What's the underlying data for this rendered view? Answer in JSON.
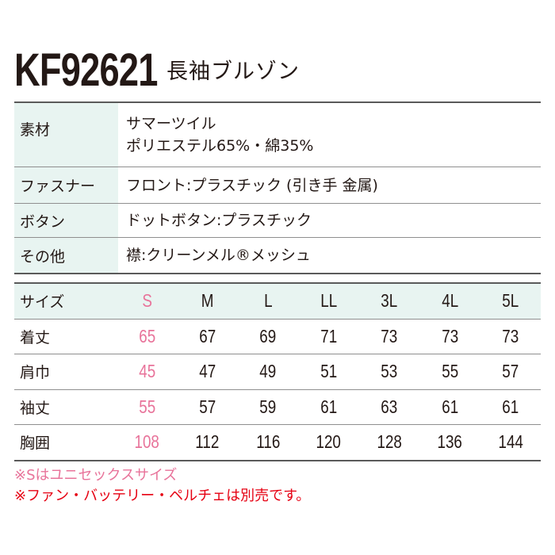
{
  "header": {
    "product_code": "KF92621",
    "product_name": "長袖ブルゾン"
  },
  "spec_table": {
    "rows": [
      {
        "label": "素材",
        "values": [
          "サマーツイル",
          "ポリエステル65%・綿35%"
        ]
      },
      {
        "label": "ファスナー",
        "values": [
          "フロント:プラスチック (引き手 金属)"
        ]
      },
      {
        "label": "ボタン",
        "values": [
          "ドットボタン:プラスチック"
        ]
      },
      {
        "label": "その他",
        "values": [
          "襟:クリーンメル®メッシュ"
        ]
      }
    ]
  },
  "size_table": {
    "header_label": "サイズ",
    "sizes": [
      "S",
      "M",
      "L",
      "LL",
      "3L",
      "4L",
      "5L"
    ],
    "rows": [
      {
        "label": "着丈",
        "values": [
          "65",
          "67",
          "69",
          "71",
          "73",
          "73",
          "73"
        ]
      },
      {
        "label": "肩巾",
        "values": [
          "45",
          "47",
          "49",
          "51",
          "53",
          "55",
          "57"
        ]
      },
      {
        "label": "袖丈",
        "values": [
          "55",
          "57",
          "59",
          "61",
          "63",
          "61",
          "61"
        ]
      },
      {
        "label": "胸囲",
        "values": [
          "108",
          "112",
          "116",
          "120",
          "128",
          "136",
          "144"
        ]
      }
    ],
    "highlight_color": "#e8739a",
    "header_bg": "#e8f4f1"
  },
  "notes": {
    "unisex": "※Sはユニセックスサイズ",
    "sold_separately": "※ファン・バッテリー・ペルチェは別売です。"
  }
}
